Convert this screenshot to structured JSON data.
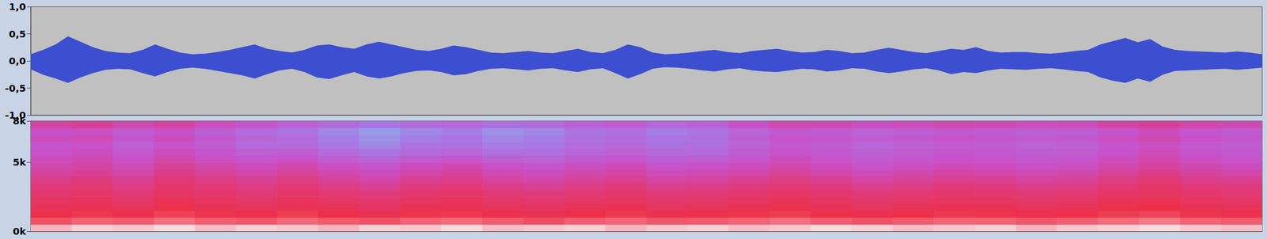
{
  "chart_data": [
    {
      "type": "area",
      "x": [
        0,
        1,
        2,
        3,
        4,
        5,
        6,
        7,
        8,
        9,
        10,
        11,
        12,
        13,
        14,
        15,
        16,
        17,
        18,
        19,
        20,
        21,
        22,
        23,
        24,
        25,
        26,
        27,
        28,
        29,
        30,
        31,
        32,
        33,
        34,
        35,
        36,
        37,
        38,
        39,
        40,
        41,
        42,
        43,
        44,
        45,
        46,
        47,
        48,
        49,
        50,
        51,
        52,
        53,
        54,
        55,
        56,
        57,
        58,
        59,
        60,
        61,
        62,
        63,
        64,
        65,
        66,
        67,
        68,
        69,
        70,
        71,
        72,
        73,
        74,
        75,
        76,
        77,
        78,
        79,
        80,
        81,
        82,
        83,
        84,
        85,
        86,
        87,
        88,
        89,
        90,
        91,
        92,
        93,
        94,
        95,
        96,
        97,
        98,
        99
      ],
      "series": [
        {
          "color": "#3c4fd0",
          "values": [
            0.12,
            0.2,
            0.3,
            0.45,
            0.35,
            0.25,
            0.18,
            0.15,
            0.14,
            0.2,
            0.3,
            0.22,
            0.15,
            0.12,
            0.13,
            0.16,
            0.2,
            0.25,
            0.3,
            0.22,
            0.18,
            0.15,
            0.2,
            0.28,
            0.3,
            0.25,
            0.22,
            0.3,
            0.35,
            0.3,
            0.25,
            0.2,
            0.18,
            0.22,
            0.28,
            0.25,
            0.2,
            0.15,
            0.14,
            0.16,
            0.18,
            0.15,
            0.14,
            0.18,
            0.22,
            0.16,
            0.14,
            0.2,
            0.3,
            0.25,
            0.15,
            0.12,
            0.13,
            0.15,
            0.18,
            0.2,
            0.16,
            0.14,
            0.18,
            0.2,
            0.22,
            0.18,
            0.15,
            0.16,
            0.2,
            0.18,
            0.14,
            0.15,
            0.2,
            0.24,
            0.2,
            0.16,
            0.14,
            0.18,
            0.22,
            0.2,
            0.25,
            0.18,
            0.15,
            0.16,
            0.16,
            0.14,
            0.13,
            0.15,
            0.18,
            0.2,
            0.3,
            0.36,
            0.42,
            0.34,
            0.4,
            0.26,
            0.2,
            0.18,
            0.17,
            0.16,
            0.15,
            0.17,
            0.15,
            0.12
          ]
        },
        {
          "color": "#3c4fd0",
          "values": [
            -0.15,
            -0.25,
            -0.32,
            -0.4,
            -0.3,
            -0.22,
            -0.16,
            -0.14,
            -0.15,
            -0.22,
            -0.28,
            -0.2,
            -0.14,
            -0.12,
            -0.14,
            -0.18,
            -0.22,
            -0.26,
            -0.32,
            -0.24,
            -0.17,
            -0.14,
            -0.2,
            -0.3,
            -0.33,
            -0.26,
            -0.2,
            -0.28,
            -0.32,
            -0.28,
            -0.22,
            -0.18,
            -0.17,
            -0.2,
            -0.26,
            -0.24,
            -0.18,
            -0.14,
            -0.13,
            -0.15,
            -0.17,
            -0.14,
            -0.13,
            -0.17,
            -0.2,
            -0.15,
            -0.13,
            -0.22,
            -0.32,
            -0.24,
            -0.14,
            -0.11,
            -0.12,
            -0.14,
            -0.17,
            -0.19,
            -0.15,
            -0.13,
            -0.17,
            -0.19,
            -0.2,
            -0.17,
            -0.14,
            -0.15,
            -0.19,
            -0.17,
            -0.13,
            -0.14,
            -0.19,
            -0.22,
            -0.19,
            -0.15,
            -0.13,
            -0.17,
            -0.24,
            -0.2,
            -0.22,
            -0.17,
            -0.14,
            -0.15,
            -0.16,
            -0.14,
            -0.13,
            -0.15,
            -0.18,
            -0.2,
            -0.3,
            -0.36,
            -0.4,
            -0.32,
            -0.38,
            -0.25,
            -0.18,
            -0.17,
            -0.16,
            -0.15,
            -0.14,
            -0.16,
            -0.14,
            -0.12
          ]
        }
      ],
      "xlim": [
        0,
        99
      ],
      "ylim": [
        -1,
        1
      ],
      "yticks": [
        {
          "value": 1,
          "label": "1,0"
        },
        {
          "value": 0.5,
          "label": "0,5"
        },
        {
          "value": 0,
          "label": "0,0"
        },
        {
          "value": -0.5,
          "label": "-0,5"
        },
        {
          "value": -1,
          "label": "-1,0"
        }
      ],
      "tick_labels": "y",
      "grid": false
    },
    {
      "type": "heatmap",
      "x_edges": [
        0,
        1,
        2,
        3,
        4,
        5,
        6,
        7,
        8,
        9,
        10,
        11,
        12,
        13,
        14,
        15,
        16,
        17,
        18,
        19,
        20,
        21,
        22,
        23,
        24,
        25,
        26,
        27,
        28,
        29,
        30
      ],
      "y_edges": [
        0,
        500,
        1000,
        1500,
        2000,
        2500,
        3000,
        3500,
        4000,
        4500,
        5000,
        5500,
        6000,
        6500,
        7000,
        7500,
        8000
      ],
      "cells": [
        [
          -8,
          -5,
          -6,
          -4,
          -7,
          -5,
          -6,
          -8,
          -5,
          -6,
          -4,
          -7,
          -6,
          -5,
          -8,
          -6,
          -5,
          -7,
          -6,
          -4,
          -5,
          -7,
          -6,
          -5,
          -8,
          -6,
          -5,
          -4,
          -6,
          -7
        ],
        [
          -22,
          -18,
          -20,
          -15,
          -19,
          -21,
          -17,
          -20,
          -22,
          -18,
          -16,
          -20,
          -23,
          -19,
          -17,
          -21,
          -20,
          -18,
          -15,
          -19,
          -22,
          -20,
          -17,
          -18,
          -21,
          -19,
          -16,
          -14,
          -18,
          -20
        ],
        [
          -30,
          -28,
          -32,
          -26,
          -29,
          -31,
          -27,
          -30,
          -33,
          -29,
          -28,
          -31,
          -34,
          -30,
          -28,
          -32,
          -31,
          -29,
          -27,
          -30,
          -32,
          -30,
          -28,
          -29,
          -31,
          -30,
          -27,
          -25,
          -29,
          -31
        ],
        [
          -35,
          -33,
          -36,
          -31,
          -34,
          -36,
          -33,
          -35,
          -38,
          -34,
          -33,
          -36,
          -38,
          -35,
          -33,
          -37,
          -36,
          -34,
          -32,
          -35,
          -37,
          -35,
          -33,
          -34,
          -36,
          -35,
          -32,
          -30,
          -34,
          -36
        ],
        [
          -38,
          -36,
          -40,
          -34,
          -37,
          -40,
          -36,
          -39,
          -42,
          -38,
          -36,
          -40,
          -42,
          -39,
          -37,
          -41,
          -40,
          -38,
          -35,
          -38,
          -41,
          -39,
          -37,
          -38,
          -40,
          -39,
          -35,
          -33,
          -37,
          -39
        ],
        [
          -42,
          -40,
          -44,
          -38,
          -41,
          -44,
          -40,
          -43,
          -46,
          -42,
          -40,
          -44,
          -46,
          -43,
          -41,
          -45,
          -44,
          -42,
          -39,
          -42,
          -45,
          -43,
          -41,
          -42,
          -44,
          -43,
          -39,
          -37,
          -41,
          -43
        ],
        [
          -45,
          -43,
          -47,
          -41,
          -44,
          -47,
          -43,
          -47,
          -50,
          -46,
          -44,
          -48,
          -50,
          -47,
          -45,
          -49,
          -48,
          -46,
          -43,
          -46,
          -49,
          -47,
          -45,
          -46,
          -48,
          -47,
          -43,
          -40,
          -44,
          -46
        ],
        [
          -48,
          -46,
          -50,
          -44,
          -47,
          -50,
          -47,
          -51,
          -54,
          -50,
          -48,
          -52,
          -54,
          -51,
          -49,
          -53,
          -52,
          -50,
          -47,
          -50,
          -53,
          -51,
          -49,
          -50,
          -52,
          -51,
          -47,
          -44,
          -48,
          -50
        ],
        [
          -52,
          -50,
          -54,
          -48,
          -51,
          -54,
          -51,
          -55,
          -58,
          -54,
          -52,
          -56,
          -58,
          -55,
          -53,
          -57,
          -56,
          -54,
          -51,
          -54,
          -57,
          -55,
          -53,
          -54,
          -56,
          -55,
          -51,
          -48,
          -52,
          -54
        ],
        [
          -55,
          -53,
          -57,
          -51,
          -55,
          -58,
          -55,
          -59,
          -62,
          -58,
          -56,
          -60,
          -62,
          -59,
          -57,
          -61,
          -60,
          -58,
          -55,
          -58,
          -61,
          -59,
          -57,
          -58,
          -60,
          -59,
          -55,
          -52,
          -56,
          -58
        ],
        [
          -58,
          -56,
          -60,
          -55,
          -59,
          -62,
          -60,
          -65,
          -68,
          -64,
          -62,
          -66,
          -67,
          -64,
          -62,
          -66,
          -65,
          -62,
          -58,
          -61,
          -64,
          -62,
          -60,
          -61,
          -63,
          -62,
          -58,
          -55,
          -59,
          -61
        ],
        [
          -60,
          -58,
          -63,
          -58,
          -62,
          -66,
          -65,
          -70,
          -74,
          -70,
          -68,
          -72,
          -72,
          -68,
          -66,
          -70,
          -69,
          -65,
          -61,
          -63,
          -66,
          -64,
          -62,
          -63,
          -65,
          -64,
          -60,
          -57,
          -61,
          -63
        ],
        [
          -62,
          -60,
          -66,
          -61,
          -65,
          -70,
          -70,
          -75,
          -78,
          -74,
          -72,
          -76,
          -75,
          -71,
          -69,
          -73,
          -72,
          -67,
          -63,
          -65,
          -68,
          -66,
          -64,
          -65,
          -67,
          -66,
          -62,
          -59,
          -63,
          -65
        ],
        [
          -58,
          -57,
          -62,
          -58,
          -63,
          -68,
          -70,
          -76,
          -80,
          -76,
          -74,
          -78,
          -76,
          -72,
          -70,
          -74,
          -72,
          -66,
          -61,
          -62,
          -65,
          -63,
          -61,
          -62,
          -64,
          -63,
          -59,
          -56,
          -60,
          -62
        ],
        [
          -60,
          -59,
          -64,
          -60,
          -66,
          -70,
          -73,
          -78,
          -82,
          -78,
          -76,
          -80,
          -78,
          -74,
          -72,
          -76,
          -74,
          -68,
          -63,
          -64,
          -67,
          -65,
          -63,
          -64,
          -66,
          -65,
          -61,
          -58,
          -62,
          -64
        ],
        [
          -52,
          -50,
          -55,
          -52,
          -58,
          -62,
          -66,
          -70,
          -74,
          -70,
          -68,
          -72,
          -70,
          -66,
          -64,
          -68,
          -66,
          -60,
          -55,
          -56,
          -59,
          -57,
          -55,
          -56,
          -58,
          -57,
          -53,
          -50,
          -54,
          -56
        ]
      ],
      "color_range": [
        -90,
        0
      ],
      "xlim": [
        0,
        30
      ],
      "ylim": [
        0,
        8000
      ],
      "yticks": [
        {
          "value": 0,
          "label": "0k"
        },
        {
          "value": 5000,
          "label": "5k"
        },
        {
          "value": 8000,
          "label": "8k"
        }
      ],
      "tick_labels": "y",
      "grid": false
    }
  ]
}
